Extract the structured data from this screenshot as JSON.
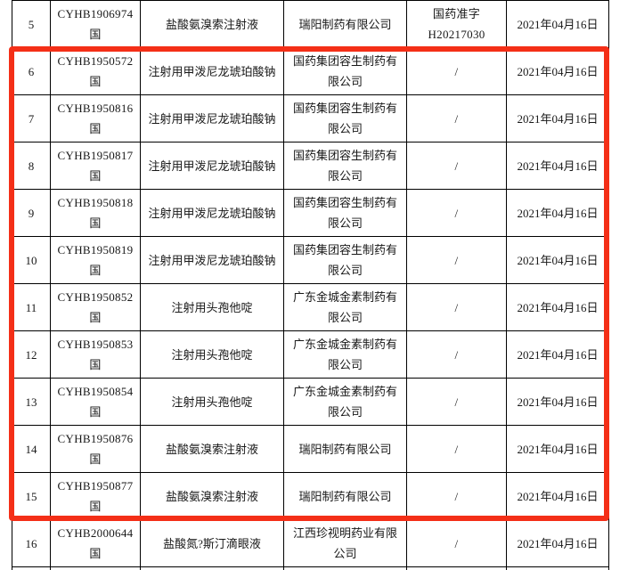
{
  "colors": {
    "highlight_border": "#f42f17",
    "grid_border": "#000000",
    "text": "#181818",
    "page_background": "#ffffff"
  },
  "table": {
    "rows": [
      {
        "no": "5",
        "reg": "CYHB1906974\n国",
        "drug": "盐酸氨溴索注射液",
        "company": "瑞阳制药有限公司",
        "approval": "国药准字\nH20217030",
        "date": "2021年04月16日",
        "highlighted": false
      },
      {
        "no": "6",
        "reg": "CYHB1950572\n国",
        "drug": "注射用甲泼尼龙琥珀酸钠",
        "company": "国药集团容生制药有限公司",
        "approval": "/",
        "date": "2021年04月16日",
        "highlighted": true
      },
      {
        "no": "7",
        "reg": "CYHB1950816\n国",
        "drug": "注射用甲泼尼龙琥珀酸钠",
        "company": "国药集团容生制药有限公司",
        "approval": "/",
        "date": "2021年04月16日",
        "highlighted": true
      },
      {
        "no": "8",
        "reg": "CYHB1950817\n国",
        "drug": "注射用甲泼尼龙琥珀酸钠",
        "company": "国药集团容生制药有限公司",
        "approval": "/",
        "date": "2021年04月16日",
        "highlighted": true
      },
      {
        "no": "9",
        "reg": "CYHB1950818\n国",
        "drug": "注射用甲泼尼龙琥珀酸钠",
        "company": "国药集团容生制药有限公司",
        "approval": "/",
        "date": "2021年04月16日",
        "highlighted": true
      },
      {
        "no": "10",
        "reg": "CYHB1950819\n国",
        "drug": "注射用甲泼尼龙琥珀酸钠",
        "company": "国药集团容生制药有限公司",
        "approval": "/",
        "date": "2021年04月16日",
        "highlighted": true
      },
      {
        "no": "11",
        "reg": "CYHB1950852\n国",
        "drug": "注射用头孢他啶",
        "company": "广东金城金素制药有限公司",
        "approval": "/",
        "date": "2021年04月16日",
        "highlighted": true
      },
      {
        "no": "12",
        "reg": "CYHB1950853\n国",
        "drug": "注射用头孢他啶",
        "company": "广东金城金素制药有限公司",
        "approval": "/",
        "date": "2021年04月16日",
        "highlighted": true
      },
      {
        "no": "13",
        "reg": "CYHB1950854\n国",
        "drug": "注射用头孢他啶",
        "company": "广东金城金素制药有限公司",
        "approval": "/",
        "date": "2021年04月16日",
        "highlighted": true
      },
      {
        "no": "14",
        "reg": "CYHB1950876\n国",
        "drug": "盐酸氨溴索注射液",
        "company": "瑞阳制药有限公司",
        "approval": "/",
        "date": "2021年04月16日",
        "highlighted": true
      },
      {
        "no": "15",
        "reg": "CYHB1950877\n国",
        "drug": "盐酸氨溴索注射液",
        "company": "瑞阳制药有限公司",
        "approval": "/",
        "date": "2021年04月16日",
        "highlighted": true
      },
      {
        "no": "16",
        "reg": "CYHB2000644\n国",
        "drug": "盐酸氮?斯汀滴眼液",
        "company": "江西珍视明药业有限公司",
        "approval": "/",
        "date": "2021年04月16日",
        "highlighted": false
      }
    ]
  }
}
